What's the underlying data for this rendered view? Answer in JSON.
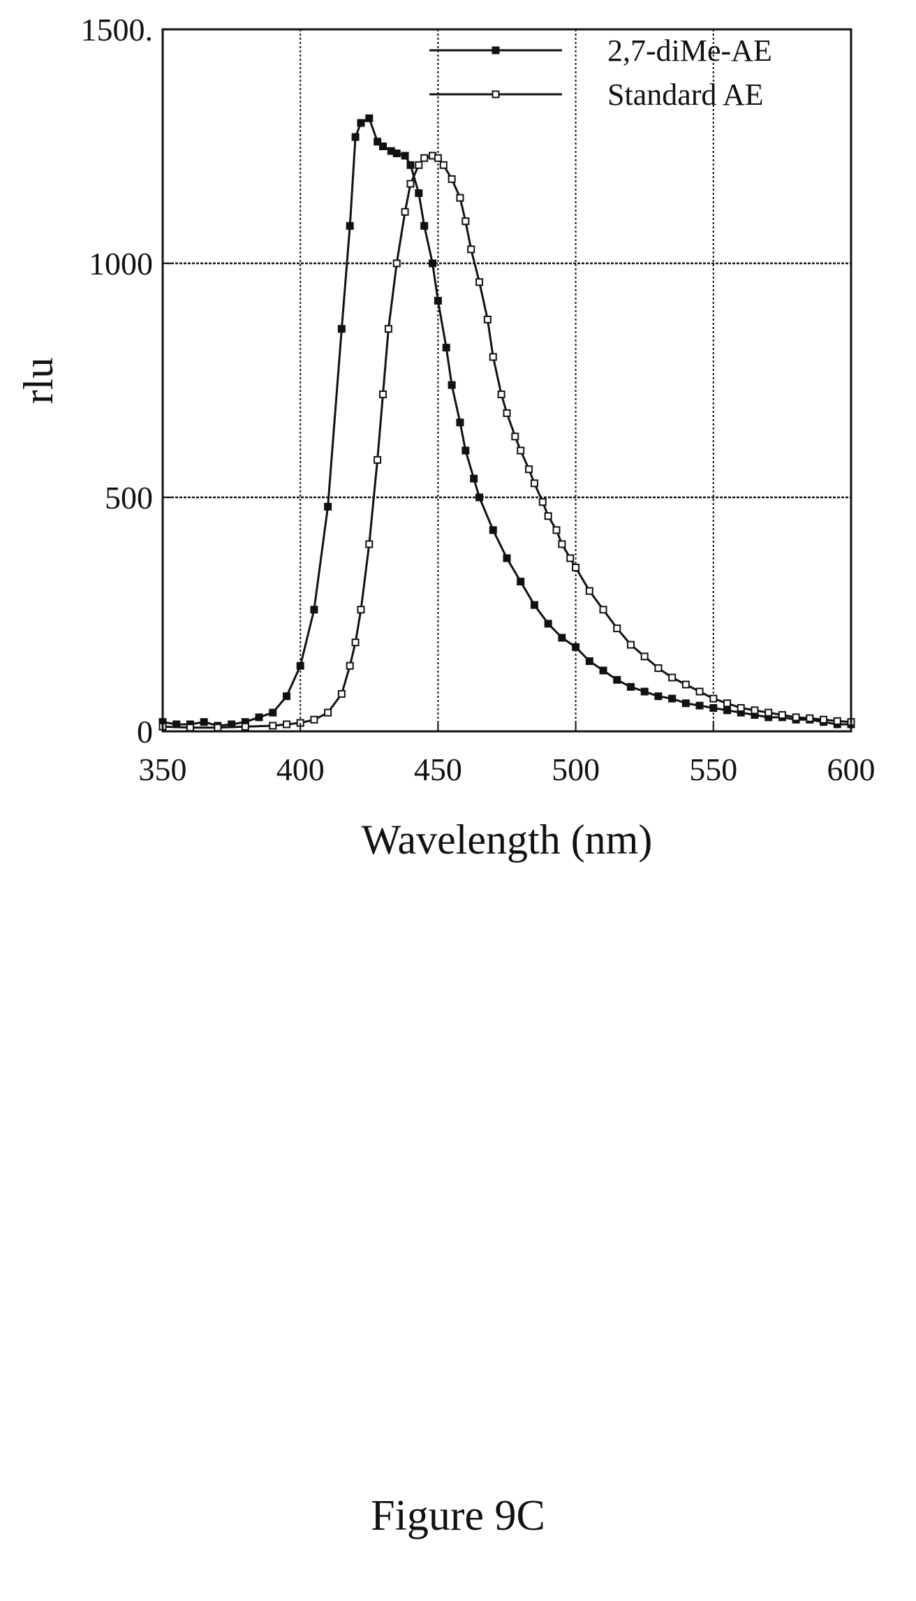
{
  "figure": {
    "caption": "Figure 9C"
  },
  "chart_data": {
    "type": "line",
    "xlabel": "Wavelength (nm)",
    "ylabel": "rlu",
    "xlim": [
      350,
      600
    ],
    "ylim": [
      0,
      1500
    ],
    "x_ticks": [
      350,
      400,
      450,
      500,
      550,
      600
    ],
    "y_ticks": [
      0,
      500,
      1000,
      1500
    ],
    "x_tick_labels": [
      "350",
      "400",
      "450",
      "500",
      "550",
      "600"
    ],
    "y_tick_labels": [
      "0",
      "500",
      "1000",
      "1500."
    ],
    "grid": true,
    "legend_position": "top-right",
    "colors": {
      "ink": "#111111",
      "background": "#ffffff"
    },
    "series": [
      {
        "name": "2,7-diMe-AE",
        "marker": "filled-square",
        "points": [
          [
            350,
            20
          ],
          [
            355,
            15
          ],
          [
            360,
            15
          ],
          [
            365,
            20
          ],
          [
            370,
            12
          ],
          [
            375,
            15
          ],
          [
            380,
            20
          ],
          [
            385,
            30
          ],
          [
            390,
            40
          ],
          [
            395,
            75
          ],
          [
            400,
            140
          ],
          [
            405,
            260
          ],
          [
            410,
            480
          ],
          [
            415,
            860
          ],
          [
            418,
            1080
          ],
          [
            420,
            1270
          ],
          [
            422,
            1300
          ],
          [
            425,
            1310
          ],
          [
            428,
            1260
          ],
          [
            430,
            1250
          ],
          [
            433,
            1240
          ],
          [
            435,
            1235
          ],
          [
            438,
            1230
          ],
          [
            440,
            1210
          ],
          [
            443,
            1150
          ],
          [
            445,
            1080
          ],
          [
            448,
            1000
          ],
          [
            450,
            920
          ],
          [
            453,
            820
          ],
          [
            455,
            740
          ],
          [
            458,
            660
          ],
          [
            460,
            600
          ],
          [
            463,
            540
          ],
          [
            465,
            500
          ],
          [
            470,
            430
          ],
          [
            475,
            370
          ],
          [
            480,
            320
          ],
          [
            485,
            270
          ],
          [
            490,
            230
          ],
          [
            495,
            200
          ],
          [
            500,
            180
          ],
          [
            505,
            150
          ],
          [
            510,
            130
          ],
          [
            515,
            110
          ],
          [
            520,
            95
          ],
          [
            525,
            85
          ],
          [
            530,
            75
          ],
          [
            535,
            70
          ],
          [
            540,
            60
          ],
          [
            545,
            55
          ],
          [
            550,
            50
          ],
          [
            555,
            45
          ],
          [
            560,
            40
          ],
          [
            565,
            35
          ],
          [
            570,
            30
          ],
          [
            575,
            30
          ],
          [
            580,
            25
          ],
          [
            585,
            25
          ],
          [
            590,
            20
          ],
          [
            595,
            15
          ],
          [
            600,
            15
          ]
        ]
      },
      {
        "name": "Standard AE",
        "marker": "open-square",
        "points": [
          [
            350,
            10
          ],
          [
            360,
            8
          ],
          [
            370,
            8
          ],
          [
            380,
            10
          ],
          [
            390,
            12
          ],
          [
            395,
            15
          ],
          [
            400,
            18
          ],
          [
            405,
            25
          ],
          [
            410,
            40
          ],
          [
            415,
            80
          ],
          [
            418,
            140
          ],
          [
            420,
            190
          ],
          [
            422,
            260
          ],
          [
            425,
            400
          ],
          [
            428,
            580
          ],
          [
            430,
            720
          ],
          [
            432,
            860
          ],
          [
            435,
            1000
          ],
          [
            438,
            1110
          ],
          [
            440,
            1170
          ],
          [
            443,
            1210
          ],
          [
            445,
            1225
          ],
          [
            448,
            1230
          ],
          [
            450,
            1225
          ],
          [
            452,
            1210
          ],
          [
            455,
            1180
          ],
          [
            458,
            1140
          ],
          [
            460,
            1090
          ],
          [
            462,
            1030
          ],
          [
            465,
            960
          ],
          [
            468,
            880
          ],
          [
            470,
            800
          ],
          [
            473,
            720
          ],
          [
            475,
            680
          ],
          [
            478,
            630
          ],
          [
            480,
            600
          ],
          [
            483,
            560
          ],
          [
            485,
            530
          ],
          [
            488,
            490
          ],
          [
            490,
            460
          ],
          [
            493,
            430
          ],
          [
            495,
            400
          ],
          [
            498,
            370
          ],
          [
            500,
            350
          ],
          [
            505,
            300
          ],
          [
            510,
            260
          ],
          [
            515,
            220
          ],
          [
            520,
            185
          ],
          [
            525,
            160
          ],
          [
            530,
            135
          ],
          [
            535,
            115
          ],
          [
            540,
            100
          ],
          [
            545,
            85
          ],
          [
            550,
            70
          ],
          [
            555,
            60
          ],
          [
            560,
            50
          ],
          [
            565,
            45
          ],
          [
            570,
            40
          ],
          [
            575,
            35
          ],
          [
            580,
            30
          ],
          [
            585,
            28
          ],
          [
            590,
            25
          ],
          [
            595,
            22
          ],
          [
            600,
            20
          ]
        ]
      }
    ]
  }
}
